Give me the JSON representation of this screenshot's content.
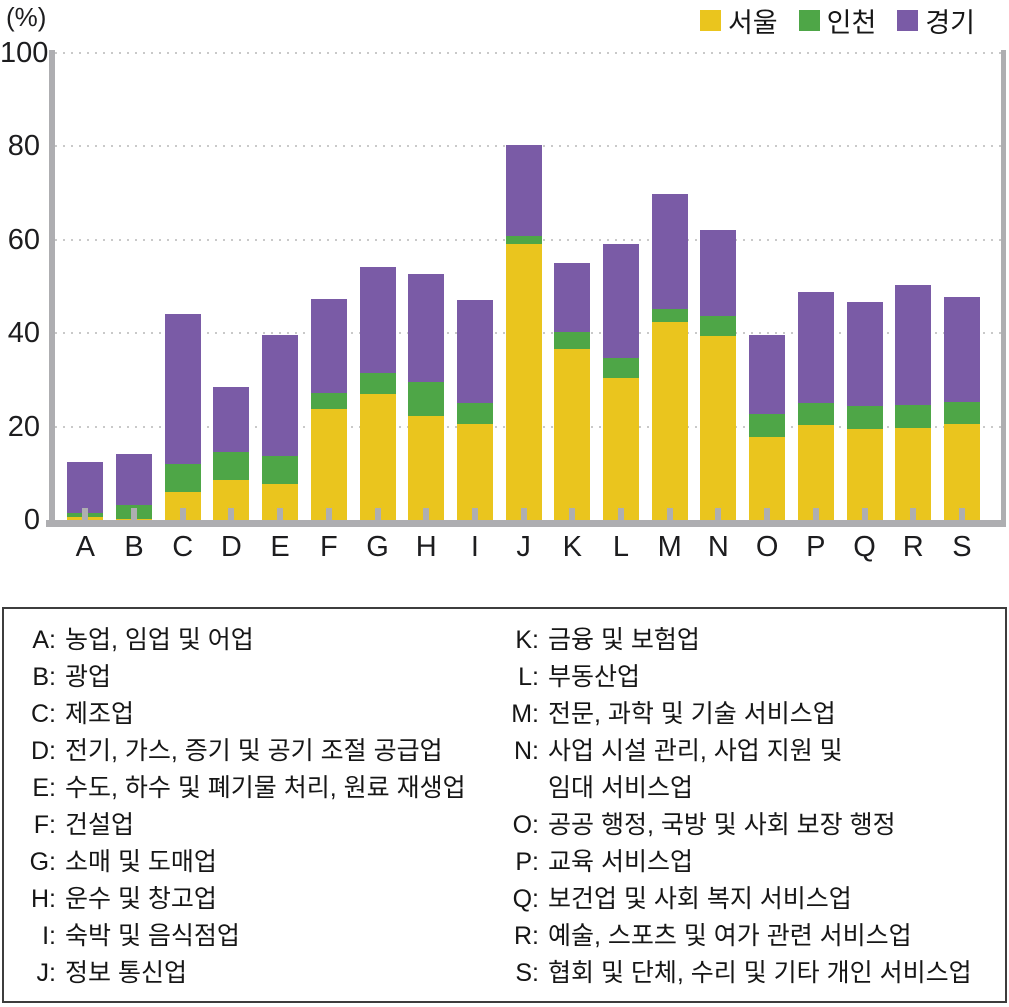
{
  "figure": {
    "unit_label": "(%)",
    "colors": {
      "seoul": "#EAC51E",
      "incheon": "#4EA647",
      "gyeonggi": "#7A5BA6",
      "axis": "#AEAEB1",
      "gridline": "#C9C9C9",
      "text": "#1D1D1F"
    }
  },
  "chart_data": {
    "type": "bar",
    "stacked": true,
    "title": "",
    "xlabel": "",
    "ylabel": "(%)",
    "ylim": [
      0,
      100
    ],
    "yticks": [
      0,
      20,
      40,
      60,
      80,
      100
    ],
    "grid": "horizontal-dotted",
    "legend_position": "top-right",
    "categories": [
      "A",
      "B",
      "C",
      "D",
      "E",
      "F",
      "G",
      "H",
      "I",
      "J",
      "K",
      "L",
      "M",
      "N",
      "O",
      "P",
      "Q",
      "R",
      "S"
    ],
    "series": [
      {
        "name": "서울",
        "color": "#EAC51E",
        "values": [
          0.7,
          0.3,
          6.0,
          8.5,
          7.7,
          23.7,
          26.9,
          22.2,
          20.6,
          59.0,
          36.6,
          30.4,
          42.4,
          39.4,
          17.8,
          20.3,
          19.4,
          19.7,
          20.6
        ]
      },
      {
        "name": "인천",
        "color": "#4EA647",
        "values": [
          0.8,
          2.9,
          5.9,
          6.0,
          6.1,
          3.4,
          4.6,
          7.4,
          4.5,
          1.8,
          3.6,
          4.3,
          2.8,
          4.2,
          5.0,
          4.8,
          5.1,
          4.9,
          4.6
        ]
      },
      {
        "name": "경기",
        "color": "#7A5BA6",
        "values": [
          11.0,
          10.9,
          32.3,
          14.0,
          25.8,
          20.2,
          22.7,
          23.0,
          22.1,
          19.5,
          14.9,
          24.4,
          24.6,
          18.4,
          16.9,
          23.8,
          22.2,
          25.8,
          22.6
        ]
      }
    ],
    "totals": [
      12.5,
      14.1,
      44.2,
      28.5,
      39.6,
      47.3,
      54.2,
      52.6,
      47.2,
      80.3,
      55.1,
      59.1,
      69.8,
      62.0,
      39.7,
      48.9,
      46.7,
      50.4,
      47.8
    ]
  },
  "category_legend": {
    "left": [
      {
        "letter": "A:",
        "text": "농업, 임업 및 어업"
      },
      {
        "letter": "B:",
        "text": "광업"
      },
      {
        "letter": "C:",
        "text": "제조업"
      },
      {
        "letter": "D:",
        "text": "전기, 가스, 증기 및 공기 조절 공급업"
      },
      {
        "letter": "E:",
        "text": "수도, 하수 및 폐기물 처리, 원료 재생업"
      },
      {
        "letter": "F:",
        "text": "건설업"
      },
      {
        "letter": "G:",
        "text": "소매 및 도매업"
      },
      {
        "letter": "H:",
        "text": "운수 및 창고업"
      },
      {
        "letter": "I:",
        "text": "숙박 및 음식점업"
      },
      {
        "letter": "J:",
        "text": "정보 통신업"
      }
    ],
    "right": [
      {
        "letter": "K:",
        "text": "금융 및 보험업"
      },
      {
        "letter": "L:",
        "text": "부동산업"
      },
      {
        "letter": "M:",
        "text": "전문, 과학 및 기술 서비스업"
      },
      {
        "letter": "N:",
        "text": "사업 시설 관리, 사업 지원 및"
      },
      {
        "letter": "",
        "text": "임대 서비스업"
      },
      {
        "letter": "O:",
        "text": "공공 행정, 국방 및 사회 보장 행정"
      },
      {
        "letter": "P:",
        "text": "교육 서비스업"
      },
      {
        "letter": "Q:",
        "text": "보건업 및 사회 복지 서비스업"
      },
      {
        "letter": "R:",
        "text": "예술, 스포츠 및 여가 관련 서비스업"
      },
      {
        "letter": "S:",
        "text": "협회 및 단체, 수리 및 기타 개인 서비스업"
      }
    ]
  }
}
